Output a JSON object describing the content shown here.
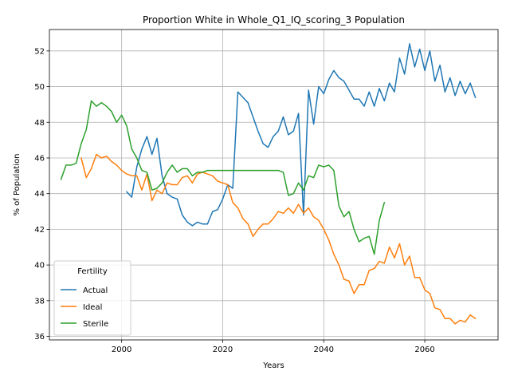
{
  "chart_data": {
    "type": "line",
    "title": "Proportion White in Whole_Q1_IQ_scoring_3 Population",
    "xlabel": "Years",
    "ylabel": "% of Population",
    "xlim": [
      1985.7,
      2074.5
    ],
    "ylim": [
      35.8,
      53.2
    ],
    "xticks": [
      2000,
      2020,
      2040,
      2060
    ],
    "yticks": [
      36,
      38,
      40,
      42,
      44,
      46,
      48,
      50,
      52
    ],
    "grid": true,
    "legend": {
      "title": "Fertility",
      "placement": "lower-left"
    },
    "series": [
      {
        "name": "Actual",
        "color": "#1f77b4",
        "x": [
          2001,
          2002,
          2003,
          2004,
          2005,
          2006,
          2007,
          2008,
          2009,
          2010,
          2011,
          2012,
          2013,
          2014,
          2015,
          2016,
          2017,
          2018,
          2019,
          2020,
          2021,
          2022,
          2023,
          2024,
          2025,
          2026,
          2027,
          2028,
          2029,
          2030,
          2031,
          2032,
          2033,
          2034,
          2035,
          2036,
          2037,
          2038,
          2039,
          2040,
          2041,
          2042,
          2043,
          2044,
          2045,
          2046,
          2047,
          2048,
          2049,
          2050,
          2051,
          2052,
          2053,
          2054,
          2055,
          2056,
          2057,
          2058,
          2059,
          2060,
          2061,
          2062,
          2063,
          2064,
          2065,
          2066,
          2067,
          2068,
          2069,
          2070
        ],
        "values": [
          44.1,
          43.8,
          45.5,
          46.5,
          47.2,
          46.2,
          47.1,
          45.0,
          44.0,
          43.8,
          43.7,
          42.8,
          42.4,
          42.2,
          42.4,
          42.3,
          42.3,
          43.0,
          43.1,
          43.7,
          44.5,
          44.3,
          49.7,
          49.4,
          49.1,
          48.3,
          47.5,
          46.8,
          46.6,
          47.2,
          47.5,
          48.3,
          47.3,
          47.5,
          48.5,
          42.8,
          49.8,
          47.9,
          50.0,
          49.6,
          50.4,
          50.9,
          50.5,
          50.3,
          49.8,
          49.3,
          49.3,
          48.9,
          49.7,
          48.9,
          49.9,
          49.2,
          50.2,
          49.7,
          51.6,
          50.7,
          52.4,
          51.1,
          52.1,
          50.9,
          52.0,
          50.3,
          51.2,
          49.7,
          50.5,
          49.5,
          50.3,
          49.6,
          50.2,
          49.4
        ]
      },
      {
        "name": "Ideal",
        "color": "#ff7f0e",
        "x": [
          1992,
          1993,
          1994,
          1995,
          1996,
          1997,
          1998,
          1999,
          2000,
          2001,
          2002,
          2003,
          2004,
          2005,
          2006,
          2007,
          2008,
          2009,
          2010,
          2011,
          2012,
          2013,
          2014,
          2015,
          2016,
          2017,
          2018,
          2019,
          2020,
          2021,
          2022,
          2023,
          2024,
          2025,
          2026,
          2027,
          2028,
          2029,
          2030,
          2031,
          2032,
          2033,
          2034,
          2035,
          2036,
          2037,
          2038,
          2039,
          2040,
          2041,
          2042,
          2043,
          2044,
          2045,
          2046,
          2047,
          2048,
          2049,
          2050,
          2051,
          2052,
          2053,
          2054,
          2055,
          2056,
          2057,
          2058,
          2059,
          2060,
          2061,
          2062,
          2063,
          2064,
          2065,
          2066,
          2067,
          2068,
          2069,
          2070
        ],
        "values": [
          46.0,
          44.9,
          45.4,
          46.2,
          46.0,
          46.1,
          45.8,
          45.6,
          45.3,
          45.1,
          45.0,
          45.0,
          44.2,
          45.1,
          43.6,
          44.2,
          44.0,
          44.6,
          44.5,
          44.5,
          44.9,
          45.0,
          44.6,
          45.1,
          45.2,
          45.1,
          45.0,
          44.7,
          44.6,
          44.5,
          43.5,
          43.2,
          42.6,
          42.3,
          41.6,
          42.0,
          42.3,
          42.3,
          42.6,
          43.0,
          42.9,
          43.2,
          42.9,
          43.4,
          42.9,
          43.2,
          42.7,
          42.5,
          42.0,
          41.4,
          40.6,
          40.0,
          39.2,
          39.1,
          38.4,
          38.9,
          38.9,
          39.7,
          39.8,
          40.2,
          40.1,
          41.0,
          40.4,
          41.2,
          40.0,
          40.5,
          39.3,
          39.3,
          38.6,
          38.4,
          37.6,
          37.5,
          37.0,
          37.0,
          36.7,
          36.9,
          36.8,
          37.2,
          37.0
        ]
      },
      {
        "name": "Sterile",
        "color": "#2ca02c",
        "x": [
          1988,
          1989,
          1990,
          1991,
          1992,
          1993,
          1994,
          1995,
          1996,
          1997,
          1998,
          1999,
          2000,
          2001,
          2002,
          2003,
          2004,
          2005,
          2006,
          2007,
          2008,
          2009,
          2010,
          2011,
          2012,
          2013,
          2014,
          2015,
          2016,
          2017,
          2018,
          2019,
          2020,
          2021,
          2022,
          2023,
          2024,
          2025,
          2026,
          2027,
          2028,
          2029,
          2030,
          2031,
          2032,
          2033,
          2034,
          2035,
          2036,
          2037,
          2038,
          2039,
          2040,
          2041,
          2042,
          2043,
          2044,
          2045,
          2046,
          2047,
          2048,
          2049,
          2050,
          2051,
          2052
        ],
        "values": [
          44.8,
          45.6,
          45.6,
          45.7,
          46.8,
          47.6,
          49.2,
          48.9,
          49.1,
          48.9,
          48.6,
          48.0,
          48.4,
          47.8,
          46.5,
          46.0,
          45.3,
          45.2,
          44.2,
          44.3,
          44.6,
          45.2,
          45.6,
          45.2,
          45.4,
          45.4,
          45.0,
          45.2,
          45.2,
          45.3,
          45.3,
          45.3,
          45.3,
          45.3,
          45.3,
          45.3,
          45.3,
          45.3,
          45.3,
          45.3,
          45.3,
          45.3,
          45.3,
          45.3,
          45.2,
          43.9,
          44.0,
          44.6,
          44.2,
          45.0,
          44.9,
          45.6,
          45.5,
          45.6,
          45.3,
          43.3,
          42.7,
          43.0,
          42.0,
          41.3,
          41.5,
          41.6,
          40.6,
          42.5,
          43.5
        ]
      }
    ]
  }
}
